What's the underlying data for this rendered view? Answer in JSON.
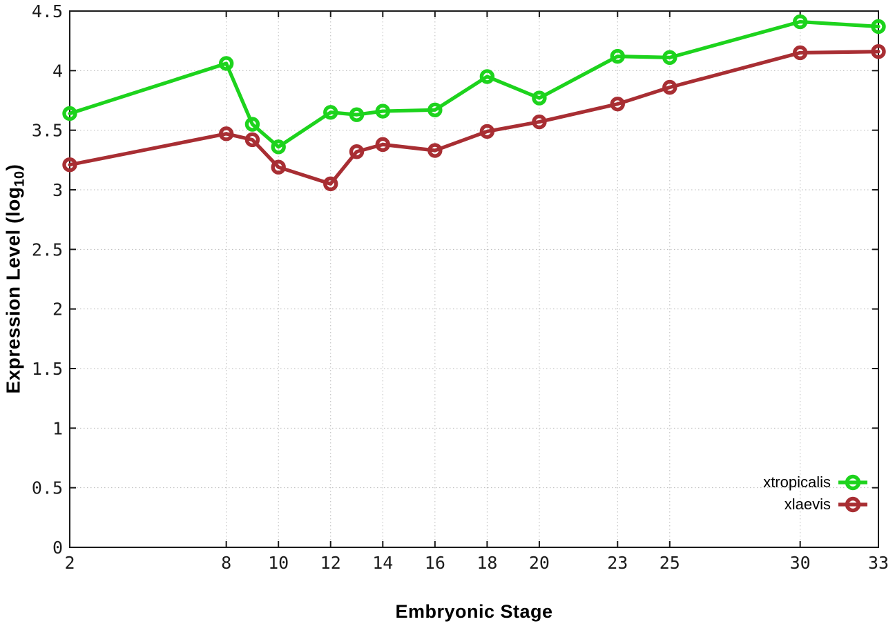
{
  "chart_data": {
    "type": "line",
    "title": "",
    "xlabel": "Embryonic Stage",
    "ylabel_main": "Expression Level (log",
    "ylabel_sub": "10",
    "ylabel_close": ")",
    "x": [
      2,
      8,
      9,
      10,
      12,
      13,
      14,
      16,
      18,
      20,
      23,
      25,
      30,
      33
    ],
    "series": [
      {
        "name": "xtropicalis",
        "color": "#1dd31d",
        "values": [
          3.64,
          4.06,
          3.55,
          3.36,
          3.65,
          3.63,
          3.66,
          3.67,
          3.95,
          3.77,
          4.12,
          4.11,
          4.41,
          4.37
        ]
      },
      {
        "name": "xlaevis",
        "color": "#a82e33",
        "values": [
          3.21,
          3.47,
          3.42,
          3.19,
          3.05,
          3.32,
          3.38,
          3.33,
          3.49,
          3.57,
          3.72,
          3.86,
          4.15,
          4.16
        ]
      }
    ],
    "xticks": [
      2,
      8,
      10,
      12,
      14,
      16,
      18,
      20,
      23,
      25,
      30,
      33
    ],
    "yticks": [
      0,
      0.5,
      1,
      1.5,
      2,
      2.5,
      3,
      3.5,
      4,
      4.5
    ],
    "xlim": [
      2,
      33
    ],
    "ylim": [
      0,
      4.5
    ],
    "grid": true,
    "legend_position": "bottom-right",
    "colors": {
      "background": "#ffffff",
      "border": "#1a1a1a",
      "grid": "#b8b8b8",
      "tick_text": "#1c1c1c"
    }
  }
}
